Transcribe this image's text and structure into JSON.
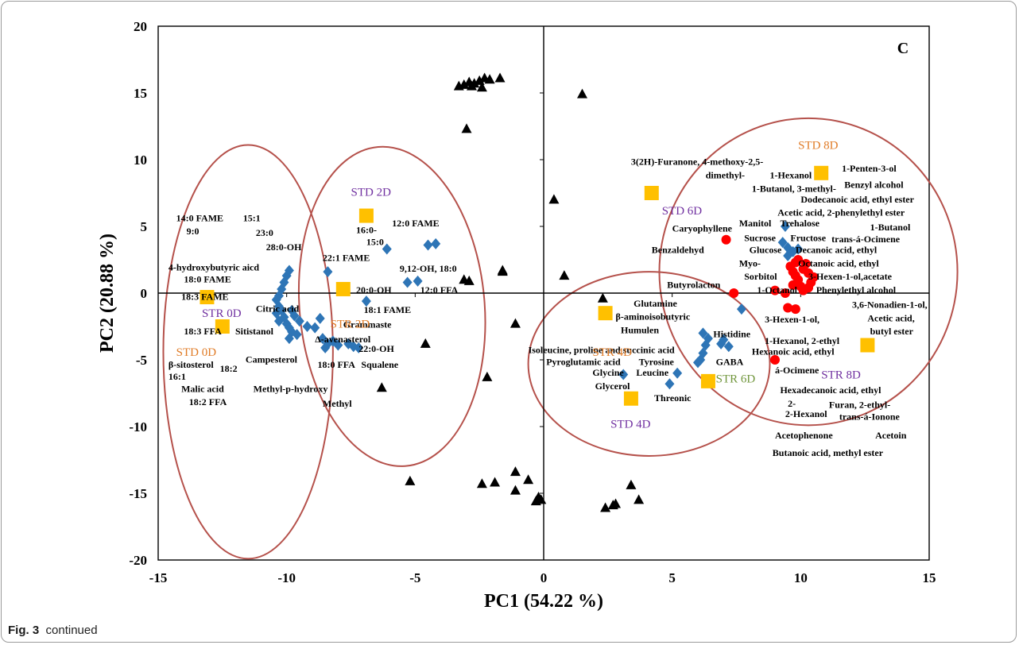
{
  "caption": {
    "label": "Fig. 3",
    "text": "continued"
  },
  "chart_data": {
    "type": "scatter",
    "title": "",
    "panel_label": "C",
    "xlabel": "PC1 (54.22 %)",
    "ylabel": "PC2 (20.88 %)",
    "xlim": [
      -15,
      15
    ],
    "ylim": [
      -20,
      20
    ],
    "xticks": [
      -15,
      -10,
      -5,
      0,
      5,
      10,
      15
    ],
    "yticks": [
      -20,
      -15,
      -10,
      -5,
      0,
      5,
      10,
      15,
      20
    ],
    "grid": false,
    "legend": "none",
    "colors": {
      "triangle": "#000000",
      "diamond": "#2e75b6",
      "circle": "#ff0000",
      "square": "#ffc000",
      "ellipse": "#b5514b",
      "label_orange": "#e07b26",
      "label_purple": "#7030a0",
      "label_green": "#70963c"
    },
    "series": [
      {
        "marker": "triangle",
        "points": [
          [
            -3.3,
            15.5
          ],
          [
            -3.1,
            15.6
          ],
          [
            -2.9,
            15.8
          ],
          [
            -2.7,
            15.7
          ],
          [
            -2.5,
            15.9
          ],
          [
            -2.3,
            16.1
          ],
          [
            -2.1,
            16.0
          ],
          [
            -1.7,
            16.1
          ],
          [
            -2.8,
            15.5
          ],
          [
            -2.4,
            15.4
          ],
          [
            -3.0,
            12.3
          ],
          [
            1.5,
            14.9
          ],
          [
            -1.6,
            1.7
          ],
          [
            -1.6,
            1.6
          ],
          [
            -3.1,
            1.0
          ],
          [
            -2.9,
            0.9
          ],
          [
            0.8,
            1.3
          ],
          [
            0.4,
            7.0
          ],
          [
            -6.3,
            -7.1
          ],
          [
            -4.6,
            -3.8
          ],
          [
            -1.1,
            -2.3
          ],
          [
            -2.2,
            -6.3
          ],
          [
            -5.2,
            -14.1
          ],
          [
            -2.4,
            -14.3
          ],
          [
            -1.9,
            -14.2
          ],
          [
            -1.1,
            -13.4
          ],
          [
            -0.6,
            -14.0
          ],
          [
            -1.1,
            -14.8
          ],
          [
            -0.2,
            -15.3
          ],
          [
            -0.1,
            -15.5
          ],
          [
            -0.3,
            -15.6
          ],
          [
            2.3,
            -0.4
          ],
          [
            2.4,
            -16.1
          ],
          [
            2.7,
            -15.9
          ],
          [
            2.8,
            -15.8
          ],
          [
            3.4,
            -14.4
          ],
          [
            3.7,
            -15.5
          ]
        ]
      },
      {
        "marker": "diamond",
        "points": [
          [
            -10.3,
            -0.2
          ],
          [
            -10.2,
            0.3
          ],
          [
            -10.1,
            0.8
          ],
          [
            -10.0,
            1.3
          ],
          [
            -9.9,
            1.7
          ],
          [
            -10.4,
            -0.5
          ],
          [
            -10.3,
            -1.0
          ],
          [
            -10.2,
            -1.3
          ],
          [
            -10.4,
            -1.5
          ],
          [
            -10.1,
            -1.8
          ],
          [
            -10.3,
            -2.1
          ],
          [
            -10.0,
            -2.3
          ],
          [
            -9.9,
            -2.6
          ],
          [
            -9.8,
            -2.9
          ],
          [
            -9.6,
            -3.1
          ],
          [
            -9.9,
            -3.4
          ],
          [
            -9.8,
            -1.3
          ],
          [
            -9.7,
            -1.7
          ],
          [
            -9.5,
            -2.1
          ],
          [
            -9.2,
            -2.5
          ],
          [
            -8.9,
            -2.6
          ],
          [
            -8.7,
            -1.9
          ],
          [
            -8.6,
            -3.4
          ],
          [
            -8.4,
            -3.8
          ],
          [
            -8.5,
            -4.1
          ],
          [
            -8.2,
            -3.6
          ],
          [
            -8.0,
            -3.9
          ],
          [
            -7.6,
            -3.8
          ],
          [
            -7.4,
            -4.0
          ],
          [
            -7.2,
            -4.1
          ],
          [
            -8.4,
            1.6
          ],
          [
            -6.9,
            -0.6
          ],
          [
            -6.1,
            3.3
          ],
          [
            -5.3,
            0.8
          ],
          [
            -4.9,
            0.9
          ],
          [
            -4.5,
            3.6
          ],
          [
            -4.2,
            3.7
          ],
          [
            3.1,
            -6.1
          ],
          [
            4.9,
            -6.8
          ],
          [
            5.2,
            -6.0
          ],
          [
            6.0,
            -5.2
          ],
          [
            6.1,
            -5.0
          ],
          [
            6.2,
            -4.5
          ],
          [
            6.3,
            -3.9
          ],
          [
            6.2,
            -3.0
          ],
          [
            6.4,
            -3.4
          ],
          [
            6.9,
            -3.8
          ],
          [
            7.0,
            -3.5
          ],
          [
            7.2,
            -4.0
          ],
          [
            7.7,
            -1.2
          ],
          [
            9.3,
            3.8
          ],
          [
            9.4,
            5.0
          ],
          [
            9.5,
            3.4
          ],
          [
            9.5,
            2.8
          ],
          [
            9.7,
            3.1
          ],
          [
            9.9,
            3.3
          ]
        ]
      },
      {
        "marker": "circle",
        "points": [
          [
            7.1,
            4.0
          ],
          [
            7.4,
            0.0
          ],
          [
            9.0,
            -5.0
          ],
          [
            9.0,
            0.2
          ],
          [
            9.4,
            0.0
          ],
          [
            9.5,
            -1.1
          ],
          [
            9.8,
            -1.2
          ],
          [
            9.6,
            2.0
          ],
          [
            9.7,
            1.6
          ],
          [
            9.8,
            1.3
          ],
          [
            9.9,
            1.0
          ],
          [
            10.0,
            0.5
          ],
          [
            10.1,
            1.8
          ],
          [
            10.2,
            2.2
          ],
          [
            10.3,
            1.5
          ],
          [
            10.4,
            0.8
          ],
          [
            10.5,
            1.2
          ],
          [
            9.9,
            2.5
          ],
          [
            10.1,
            0.2
          ],
          [
            9.7,
            0.6
          ],
          [
            10.3,
            0.4
          ],
          [
            9.8,
            2.3
          ]
        ]
      },
      {
        "marker": "square",
        "points": [
          [
            -13.1,
            -0.3
          ],
          [
            -12.5,
            -2.5
          ],
          [
            -7.8,
            0.3
          ],
          [
            -6.9,
            5.8
          ],
          [
            2.4,
            -1.5
          ],
          [
            3.4,
            -7.9
          ],
          [
            4.2,
            7.5
          ],
          [
            6.4,
            -6.6
          ],
          [
            10.8,
            9.0
          ],
          [
            12.6,
            -3.9
          ]
        ]
      }
    ],
    "ellipses": [
      {
        "cx": -11.5,
        "cy": -4.4,
        "rx": 3.3,
        "ry": 15.5,
        "angle": 0
      },
      {
        "cx": -5.9,
        "cy": -1.0,
        "rx": 3.6,
        "ry": 12.0,
        "angle": -5
      },
      {
        "cx": 4.1,
        "cy": -5.3,
        "rx": 4.7,
        "ry": 6.9,
        "angle": 0
      },
      {
        "cx": 10.3,
        "cy": 1.6,
        "rx": 5.8,
        "ry": 11.5,
        "angle": 0
      }
    ],
    "sample_labels": [
      {
        "text": "STR 0D",
        "x": -13.3,
        "y": -1.8,
        "color": "purple"
      },
      {
        "text": "STD 0D",
        "x": -14.3,
        "y": -4.7,
        "color": "orange"
      },
      {
        "text": "STR 2D",
        "x": -8.3,
        "y": -2.6,
        "color": "orange"
      },
      {
        "text": "STD 2D",
        "x": -7.5,
        "y": 7.3,
        "color": "purple"
      },
      {
        "text": "STR 4D",
        "x": 1.9,
        "y": -4.7,
        "color": "orange"
      },
      {
        "text": "STD 4D",
        "x": 2.6,
        "y": -10.1,
        "color": "purple"
      },
      {
        "text": "STD 6D",
        "x": 4.6,
        "y": 5.9,
        "color": "purple"
      },
      {
        "text": "STR 6D",
        "x": 6.7,
        "y": -6.7,
        "color": "green"
      },
      {
        "text": "STD 8D",
        "x": 9.9,
        "y": 10.8,
        "color": "orange"
      },
      {
        "text": "STR 8D",
        "x": 10.8,
        "y": -6.4,
        "color": "purple"
      }
    ],
    "annotations": [
      {
        "text": "14:0 FAME",
        "x": -14.3,
        "y": 5.4
      },
      {
        "text": "15:1",
        "x": -11.7,
        "y": 5.4
      },
      {
        "text": "9:0",
        "x": -13.9,
        "y": 4.4
      },
      {
        "text": "23:0",
        "x": -11.2,
        "y": 4.3
      },
      {
        "text": "28:0-OH",
        "x": -10.8,
        "y": 3.2
      },
      {
        "text": "4-hydroxybutyric aicd",
        "x": -14.6,
        "y": 1.7
      },
      {
        "text": "18:0 FAME",
        "x": -14.0,
        "y": 0.8
      },
      {
        "text": "18:3 FAME",
        "x": -14.1,
        "y": -0.5
      },
      {
        "text": "Citric acid",
        "x": -11.2,
        "y": -1.4
      },
      {
        "text": "18:3 FFA",
        "x": -14.0,
        "y": -3.1
      },
      {
        "text": "Sitistanol",
        "x": -12.0,
        "y": -3.1
      },
      {
        "text": "Campesterol",
        "x": -11.6,
        "y": -5.2
      },
      {
        "text": "β-sitosterol",
        "x": -14.6,
        "y": -5.6
      },
      {
        "text": "18:2",
        "x": -12.6,
        "y": -5.9
      },
      {
        "text": "16:1",
        "x": -14.6,
        "y": -6.5
      },
      {
        "text": "Malic acid",
        "x": -14.1,
        "y": -7.4
      },
      {
        "text": "Methyl-p-hydroxy",
        "x": -11.3,
        "y": -7.4
      },
      {
        "text": "18:2 FFA",
        "x": -13.8,
        "y": -8.4
      },
      {
        "text": "16:0-",
        "x": -7.3,
        "y": 4.5
      },
      {
        "text": "15:0",
        "x": -6.9,
        "y": 3.6
      },
      {
        "text": "12:0 FAME",
        "x": -5.9,
        "y": 5.0
      },
      {
        "text": "22:1 FAME",
        "x": -8.6,
        "y": 2.4
      },
      {
        "text": "9,12-OH, 18:0",
        "x": -5.6,
        "y": 1.6
      },
      {
        "text": "20:0-OH",
        "x": -7.3,
        "y": 0.0
      },
      {
        "text": "12:0 FFA",
        "x": -4.8,
        "y": 0.0
      },
      {
        "text": "18:1 FAME",
        "x": -7.0,
        "y": -1.5
      },
      {
        "text": "Grammaste",
        "x": -7.8,
        "y": -2.6
      },
      {
        "text": "Δ-avenasterol",
        "x": -8.9,
        "y": -3.7
      },
      {
        "text": "22:0-OH",
        "x": -7.2,
        "y": -4.4
      },
      {
        "text": "18:0 FFA",
        "x": -8.8,
        "y": -5.6
      },
      {
        "text": "Squalene",
        "x": -7.1,
        "y": -5.6
      },
      {
        "text": "Methyl",
        "x": -8.6,
        "y": -8.5
      },
      {
        "text": "3(2H)-Furanone, 4-methoxy-2,5-",
        "x": 3.4,
        "y": 9.6
      },
      {
        "text": "dimethyl-",
        "x": 6.3,
        "y": 8.6
      },
      {
        "text": "1-Hexanol",
        "x": 8.8,
        "y": 8.6
      },
      {
        "text": "1-Butanol, 3-methyl-",
        "x": 8.1,
        "y": 7.6
      },
      {
        "text": "1-Penten-3-ol",
        "x": 11.6,
        "y": 9.1
      },
      {
        "text": "Benzyl alcohol",
        "x": 11.7,
        "y": 7.9
      },
      {
        "text": "Dodecanoic acid, ethyl ester",
        "x": 10.0,
        "y": 6.8
      },
      {
        "text": "Acetic acid, 2-phenylethyl ester",
        "x": 9.1,
        "y": 5.8
      },
      {
        "text": "Caryophyllene",
        "x": 5.0,
        "y": 4.6
      },
      {
        "text": "Manitol",
        "x": 7.6,
        "y": 5.0
      },
      {
        "text": "Trehalose",
        "x": 9.2,
        "y": 5.0
      },
      {
        "text": "1-Butanol",
        "x": 12.7,
        "y": 4.7
      },
      {
        "text": "Sucrose",
        "x": 7.8,
        "y": 3.9
      },
      {
        "text": "Fructose",
        "x": 9.6,
        "y": 3.9
      },
      {
        "text": "trans-á-Ocimene",
        "x": 11.2,
        "y": 3.8
      },
      {
        "text": "Benzaldehyd",
        "x": 4.2,
        "y": 3.0
      },
      {
        "text": "Glucose",
        "x": 8.0,
        "y": 3.0
      },
      {
        "text": "Decanoic acid, ethyl",
        "x": 9.8,
        "y": 3.0
      },
      {
        "text": "Myo-",
        "x": 7.6,
        "y": 2.0
      },
      {
        "text": "Octanoic acid, ethyl",
        "x": 9.9,
        "y": 2.0
      },
      {
        "text": "Sorbitol",
        "x": 7.8,
        "y": 1.0
      },
      {
        "text": "3-Hexen-1-ol,acetate",
        "x": 10.3,
        "y": 1.0
      },
      {
        "text": "1-Octanol",
        "x": 8.3,
        "y": 0.0
      },
      {
        "text": "Phenylethyl alcohol",
        "x": 10.6,
        "y": 0.0
      },
      {
        "text": "Butyrolacton",
        "x": 4.8,
        "y": 0.4
      },
      {
        "text": "Glutamine",
        "x": 3.5,
        "y": -1.0
      },
      {
        "text": "β-aminoisobutyric",
        "x": 2.8,
        "y": -2.0
      },
      {
        "text": "3,6-Nonadien-1-ol,",
        "x": 12.0,
        "y": -1.1
      },
      {
        "text": "Acetic acid,",
        "x": 12.6,
        "y": -2.1
      },
      {
        "text": "3-Hexen-1-ol,",
        "x": 8.6,
        "y": -2.2
      },
      {
        "text": "butyl ester",
        "x": 12.7,
        "y": -3.1
      },
      {
        "text": "Humulen",
        "x": 3.0,
        "y": -3.0
      },
      {
        "text": "Histidine",
        "x": 6.6,
        "y": -3.3
      },
      {
        "text": "1-Hexanol, 2-ethyl",
        "x": 8.6,
        "y": -3.8
      },
      {
        "text": "Isoleucine, proline and succinic acid",
        "x": -0.6,
        "y": -4.5
      },
      {
        "text": "Hexanoic acid, ethyl",
        "x": 8.1,
        "y": -4.6
      },
      {
        "text": "Pyroglutamic acid",
        "x": 0.1,
        "y": -5.4
      },
      {
        "text": "Tyrosine",
        "x": 3.7,
        "y": -5.4
      },
      {
        "text": "GABA",
        "x": 6.7,
        "y": -5.4
      },
      {
        "text": "á-Ocimene",
        "x": 9.0,
        "y": -6.0
      },
      {
        "text": "Glycine",
        "x": 1.9,
        "y": -6.2
      },
      {
        "text": "Leucine",
        "x": 3.6,
        "y": -6.2
      },
      {
        "text": "Glycerol",
        "x": 2.0,
        "y": -7.2
      },
      {
        "text": "Hexadecanoic acid, ethyl",
        "x": 9.2,
        "y": -7.5
      },
      {
        "text": "Threonic",
        "x": 4.3,
        "y": -8.1
      },
      {
        "text": "2-",
        "x": 9.5,
        "y": -8.5
      },
      {
        "text": "Furan, 2-ethyl-",
        "x": 11.1,
        "y": -8.6
      },
      {
        "text": "2-Hexanol",
        "x": 9.4,
        "y": -9.3
      },
      {
        "text": "trans-á-Ionone",
        "x": 11.5,
        "y": -9.5
      },
      {
        "text": "Acetophenone",
        "x": 9.0,
        "y": -10.9
      },
      {
        "text": "Acetoin",
        "x": 12.9,
        "y": -10.9
      },
      {
        "text": "Butanoic acid, methyl ester",
        "x": 8.9,
        "y": -12.2
      }
    ]
  }
}
